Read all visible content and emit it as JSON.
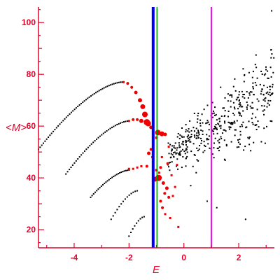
{
  "chart_data": {
    "type": "scatter",
    "xlabel": "E",
    "ylabel": "<M>",
    "xlim": [
      -5.3,
      3.3
    ],
    "ylim": [
      13,
      106
    ],
    "x_ticks": [
      -4,
      -2,
      0,
      2
    ],
    "x_tick_labels": [
      "-4",
      "-2",
      "0",
      "2"
    ],
    "y_ticks": [
      20,
      40,
      60,
      80,
      100
    ],
    "y_tick_labels": [
      "20",
      "40",
      "60",
      "80",
      "100"
    ],
    "grid": false,
    "colors": {
      "axes": "#e8002a",
      "line_blue": "#0000ee",
      "line_green": "#00a000",
      "line_magenta": "#ee00ee",
      "points_black": "#000000",
      "points_red": "#ee0000"
    },
    "vertical_lines": [
      {
        "x": -1.12,
        "color": "#0000ee",
        "width": 4
      },
      {
        "x": -0.98,
        "color": "#00a000",
        "width": 1.5
      },
      {
        "x": 1.0,
        "color": "#ee00ee",
        "width": 2
      }
    ],
    "branches": [
      {
        "x0": -5.3,
        "y0": 51,
        "x1": -2.25,
        "y1": 77,
        "n": 52
      },
      {
        "x0": -4.3,
        "y0": 41.5,
        "x1": -2.0,
        "y1": 62,
        "n": 38
      },
      {
        "x0": -3.4,
        "y0": 32.5,
        "x1": -2.0,
        "y1": 43,
        "n": 26
      },
      {
        "x0": -2.65,
        "y0": 24,
        "x1": -1.7,
        "y1": 35,
        "n": 14
      },
      {
        "x0": -2.0,
        "y0": 17.5,
        "x1": -1.45,
        "y1": 25,
        "n": 9
      }
    ],
    "red_points": [
      {
        "x": -2.2,
        "y": 77,
        "r": 1.5
      },
      {
        "x": -2.05,
        "y": 76.5,
        "r": 2
      },
      {
        "x": -1.9,
        "y": 75,
        "r": 2
      },
      {
        "x": -1.75,
        "y": 73,
        "r": 2.5
      },
      {
        "x": -1.6,
        "y": 70,
        "r": 3
      },
      {
        "x": -1.5,
        "y": 67.5,
        "r": 3.5
      },
      {
        "x": -1.42,
        "y": 64.5,
        "r": 4
      },
      {
        "x": -1.35,
        "y": 61.5,
        "r": 4.5
      },
      {
        "x": -2.0,
        "y": 62,
        "r": 1.5
      },
      {
        "x": -1.85,
        "y": 62.5,
        "r": 2
      },
      {
        "x": -1.7,
        "y": 62.5,
        "r": 2
      },
      {
        "x": -1.55,
        "y": 62,
        "r": 3
      },
      {
        "x": -1.3,
        "y": 61,
        "r": 4
      },
      {
        "x": -1.2,
        "y": 59.5,
        "r": 2.5
      },
      {
        "x": -0.95,
        "y": 57.5,
        "r": 4
      },
      {
        "x": -0.8,
        "y": 57,
        "r": 3.5
      },
      {
        "x": -0.68,
        "y": 56.8,
        "r": 2.5
      },
      {
        "x": -1.0,
        "y": 55.5,
        "r": 2
      },
      {
        "x": -1.2,
        "y": 51,
        "r": 2
      },
      {
        "x": -1.28,
        "y": 49.5,
        "r": 2.5
      },
      {
        "x": -1.15,
        "y": 48,
        "r": 1.5
      },
      {
        "x": -2.0,
        "y": 43.5,
        "r": 1.5
      },
      {
        "x": -1.85,
        "y": 43.5,
        "r": 1.5
      },
      {
        "x": -1.7,
        "y": 44,
        "r": 1.5
      },
      {
        "x": -1.55,
        "y": 44.5,
        "r": 1.5
      },
      {
        "x": -1.35,
        "y": 44.5,
        "r": 2
      },
      {
        "x": -1.0,
        "y": 43,
        "r": 2
      },
      {
        "x": -0.85,
        "y": 44,
        "r": 2
      },
      {
        "x": -0.9,
        "y": 42,
        "r": 1.5
      },
      {
        "x": -0.92,
        "y": 40,
        "r": 4.5
      },
      {
        "x": -1.05,
        "y": 39.5,
        "r": 3.5
      },
      {
        "x": -0.75,
        "y": 38,
        "r": 2.5
      },
      {
        "x": -0.62,
        "y": 36,
        "r": 2.5
      },
      {
        "x": -0.7,
        "y": 34,
        "r": 2
      },
      {
        "x": -0.55,
        "y": 32.5,
        "r": 2
      },
      {
        "x": -0.85,
        "y": 31,
        "r": 2
      },
      {
        "x": -0.78,
        "y": 28.5,
        "r": 2
      },
      {
        "x": -0.68,
        "y": 26,
        "r": 1.5
      },
      {
        "x": -0.5,
        "y": 24.5,
        "r": 1.5
      },
      {
        "x": -0.2,
        "y": 21,
        "r": 1.5
      },
      {
        "x": -0.4,
        "y": 33,
        "r": 1.5
      },
      {
        "x": -0.32,
        "y": 36.5,
        "r": 1.5
      },
      {
        "x": -0.25,
        "y": 45,
        "r": 1.5
      },
      {
        "x": -0.45,
        "y": 41,
        "r": 1.5
      },
      {
        "x": -0.6,
        "y": 45.5,
        "r": 1.5
      },
      {
        "x": -0.8,
        "y": 48,
        "r": 1.5
      },
      {
        "x": -0.55,
        "y": 52,
        "r": 1.5
      }
    ],
    "scatter_cloud": {
      "x_range": [
        -0.6,
        3.3
      ],
      "y_min_at_start": 40,
      "y_max_at_start": 57,
      "y_min_at_end": 48,
      "y_max_at_end": 100,
      "n": 420,
      "extra_points": [
        {
          "x": 3.2,
          "y": 104.5
        },
        {
          "x": 2.25,
          "y": 24
        },
        {
          "x": 0.45,
          "y": 42
        },
        {
          "x": 0.25,
          "y": 37
        },
        {
          "x": 0.85,
          "y": 31
        },
        {
          "x": 1.2,
          "y": 28.5
        }
      ]
    }
  }
}
